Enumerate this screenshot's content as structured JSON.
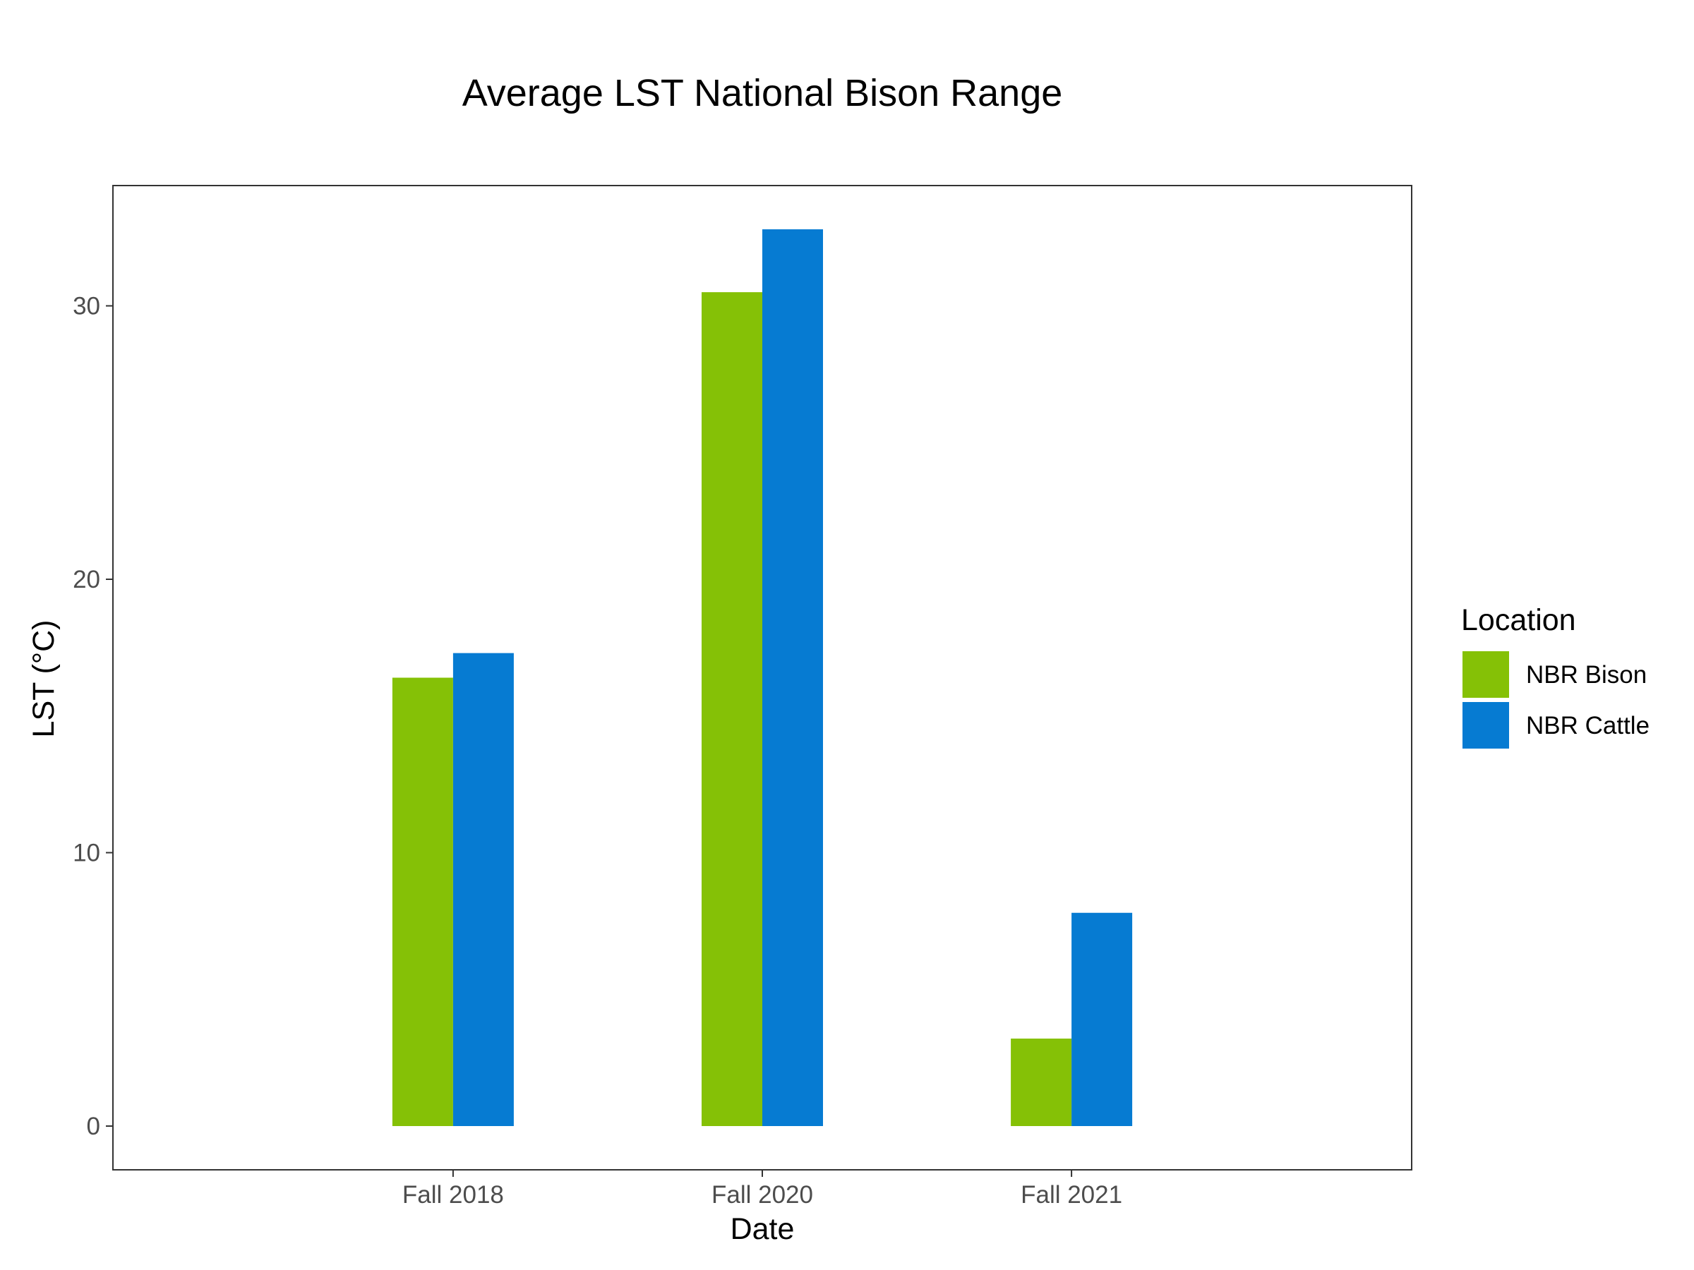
{
  "chart_data": {
    "type": "bar",
    "title": "Average LST National Bison Range",
    "xlabel": "Date",
    "ylabel": "LST (°C)",
    "categories": [
      "Fall 2018",
      "Fall 2020",
      "Fall 2021"
    ],
    "series": [
      {
        "name": "NBR Bison",
        "color": "#85c106",
        "values": [
          16.4,
          30.5,
          3.2
        ]
      },
      {
        "name": "NBR Cattle",
        "color": "#067bd2",
        "values": [
          17.3,
          32.8,
          7.8
        ]
      }
    ],
    "ylim": [
      -1.6,
      34.4
    ],
    "yticks": [
      0,
      10,
      20,
      30
    ],
    "grid": false,
    "legend": {
      "title": "Location",
      "position": "right"
    }
  }
}
